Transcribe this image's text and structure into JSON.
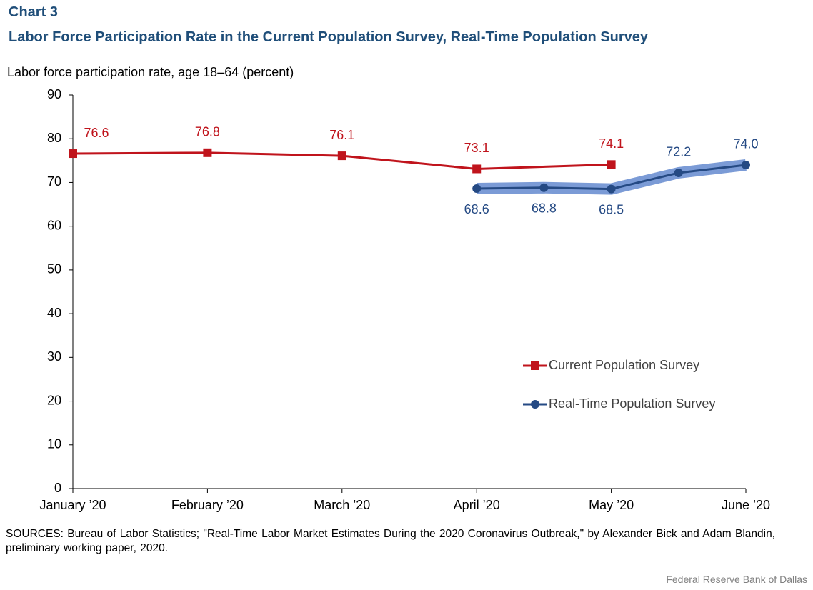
{
  "chart_data": {
    "type": "line",
    "label": "Chart 3",
    "title": "Labor Force Participation Rate in the Current Population Survey, Real-Time Population Survey",
    "ylabel": "Labor force participation rate, age 18–64 (percent)",
    "xlim": [
      1,
      6
    ],
    "xticks": [
      {
        "value": 1,
        "label": "January ’20"
      },
      {
        "value": 2,
        "label": "February ’20"
      },
      {
        "value": 3,
        "label": "March ’20"
      },
      {
        "value": 4,
        "label": "April ’20"
      },
      {
        "value": 5,
        "label": "May ’20"
      },
      {
        "value": 6,
        "label": "June ’20"
      }
    ],
    "ylim": [
      0,
      90
    ],
    "yticks": [
      0,
      10,
      20,
      30,
      40,
      50,
      60,
      70,
      80,
      90
    ],
    "series": [
      {
        "name": "Current Population Survey",
        "color": "#c0141c",
        "marker": "square",
        "x": [
          1,
          2,
          3,
          4,
          5
        ],
        "values": [
          76.6,
          76.8,
          76.1,
          73.1,
          74.1
        ],
        "value_labels": [
          "76.6",
          "76.8",
          "76.1",
          "73.1",
          "74.1"
        ]
      },
      {
        "name": "Real-Time Population Survey",
        "color": "#254a84",
        "marker": "circle",
        "band_color": "#7b9bd6",
        "x": [
          4,
          4.5,
          5,
          5.5,
          6
        ],
        "values": [
          68.6,
          68.8,
          68.5,
          72.2,
          74.0
        ],
        "value_labels": [
          "68.6",
          "68.8",
          "68.5",
          "72.2",
          "74.0"
        ]
      }
    ],
    "source": "SOURCES: Bureau of Labor Statistics; \"Real-Time Labor Market Estimates During the 2020 Coronavirus Outbreak,\" by Alexander Bick and Adam Blandin, preliminary working paper, 2020.",
    "credit": "Federal Reserve Bank of Dallas"
  }
}
